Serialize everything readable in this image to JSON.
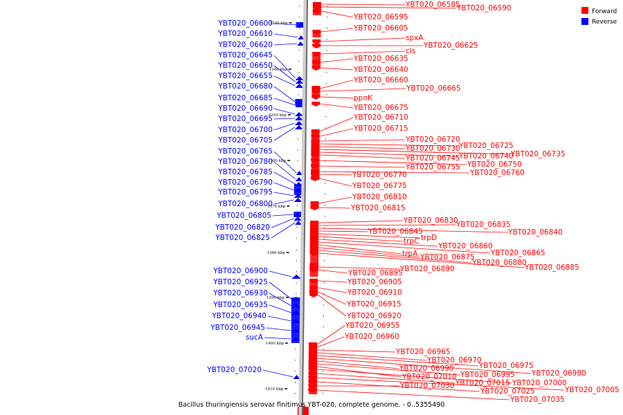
{
  "caption": "Bacillus thuringiensis serovar finitimus YBT-020, complete genome. - 0..5355490",
  "legend": {
    "forward_label": "Forward",
    "reverse_label": "Reverse",
    "forward_color": "#ff0000",
    "reverse_color": "#0000ff"
  },
  "ticks": [
    "1330 kbp",
    "1340 kbp",
    "1350 kbp",
    "1360 kbp",
    "1370 kbp",
    "1380 kbp",
    "1390 kbp",
    "1400 kbp",
    "1410 kbp"
  ],
  "forward_genes": [
    "YBT020_06585",
    "YBT020_06590",
    "YBT020_06595",
    "YBT020_06605",
    "spxA",
    "YBT020_06625",
    "cls",
    "YBT020_06635",
    "YBT020_06640",
    "YBT020_06660",
    "YBT020_06665",
    "ppnK",
    "YBT020_06675",
    "YBT020_06710",
    "YBT020_06715",
    "YBT020_06720",
    "YBT020_06725",
    "YBT020_06730",
    "YBT020_06735",
    "YBT020_06740",
    "YBT020_06745",
    "YBT020_06750",
    "YBT020_06755",
    "YBT020_06760",
    "YBT020_06770",
    "YBT020_06775",
    "YBT020_06810",
    "YBT020_06815",
    "YBT020_06830",
    "YBT020_06835",
    "YBT020_06840",
    "YBT020_06845",
    "trpD",
    "trpC",
    "YBT020_06860",
    "YBT020_06865",
    "trpA",
    "YBT020_06875",
    "YBT020_06880",
    "YBT020_06885",
    "YBT020_06890",
    "YBT020_06895",
    "YBT020_06905",
    "YBT020_06910",
    "YBT020_06915",
    "YBT020_06920",
    "YBT020_06955",
    "YBT020_06960",
    "YBT020_06965",
    "YBT020_06970",
    "YBT020_06975",
    "YBT020_06980",
    "YBT020_06990",
    "YBT020_06995",
    "YBT020_07010",
    "YBT020_07000",
    "YBT020_07015",
    "YBT020_07005",
    "YBT020_07025",
    "YBT020_07030",
    "YBT020_07035"
  ],
  "reverse_genes": [
    "YBT020_06600",
    "YBT020_06610",
    "YBT020_06620",
    "YBT020_06645",
    "YBT020_06650",
    "YBT020_06655",
    "YBT020_06680",
    "YBT020_06685",
    "YBT020_06690",
    "YBT020_06695",
    "YBT020_06700",
    "YBT020_06705",
    "YBT020_06765",
    "YBT020_06780",
    "YBT020_06785",
    "YBT020_06790",
    "YBT020_06795",
    "YBT020_06800",
    "YBT020_06805",
    "YBT020_06820",
    "YBT020_06825",
    "YBT020_06900",
    "YBT020_06925",
    "YBT020_06930",
    "YBT020_06935",
    "YBT020_06940",
    "YBT020_06945",
    "sucA",
    "YBT020_07020"
  ]
}
